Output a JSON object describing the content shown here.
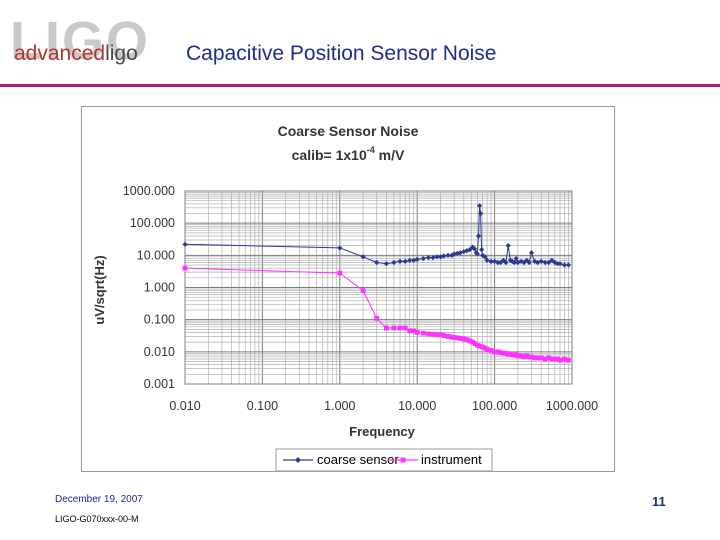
{
  "header": {
    "logo_big": "LIGO",
    "logo_adv": "advanced",
    "logo_ligo": "ligo",
    "title": "Capacitive Position Sensor Noise"
  },
  "footer": {
    "date": "December 19, 2007",
    "doc_id": "LIGO-G070xxx-00-M",
    "page_number": "11"
  },
  "colors": {
    "accent_rule": "#a6207a",
    "title": "#1f2b8f",
    "coarse_sensor": "#2b3a8f",
    "instrument": "#ff33ff"
  },
  "chart_data": {
    "type": "line",
    "title": "Coarse Sensor Noise",
    "subtitle_prefix": "calib= 1x10",
    "subtitle_exp": "-4",
    "subtitle_suffix": " m/V",
    "xlabel": "Frequency",
    "ylabel": "uV/sqrt(Hz)",
    "xscale": "log",
    "yscale": "log",
    "xlim": [
      0.01,
      1000
    ],
    "ylim": [
      0.001,
      1000
    ],
    "xticks": [
      0.01,
      0.1,
      1,
      10,
      100,
      1000
    ],
    "xtick_labels": [
      "0.010",
      "0.100",
      "1.000",
      "10.000",
      "100.000",
      "1000.000"
    ],
    "yticks": [
      0.001,
      0.01,
      0.1,
      1,
      10,
      100,
      1000
    ],
    "ytick_labels": [
      "0.001",
      "0.010",
      "0.100",
      "1.000",
      "10.000",
      "100.000",
      "1000.000"
    ],
    "grid": true,
    "legend_position": "bottom",
    "series": [
      {
        "name": "coarse sensor",
        "marker": "diamond",
        "x": [
          0.01,
          1.0,
          2.0,
          3.0,
          4.0,
          5.0,
          6.0,
          7.0,
          8.0,
          9.0,
          10.0,
          12.0,
          14.0,
          16.0,
          18.0,
          20.0,
          22.0,
          25.0,
          28.0,
          30.0,
          33.0,
          36.0,
          40.0,
          44.0,
          48.0,
          52.0,
          55.0,
          58.0,
          60.0,
          62.0,
          64.0,
          66.0,
          68.0,
          70.0,
          75.0,
          80.0,
          90.0,
          100.0,
          110.0,
          120.0,
          130.0,
          140.0,
          150.0,
          160.0,
          170.0,
          180.0,
          190.0,
          200.0,
          220.0,
          240.0,
          260.0,
          280.0,
          300.0,
          330.0,
          360.0,
          400.0,
          450.0,
          500.0,
          550.0,
          600.0,
          650.0,
          700.0,
          800.0,
          900.0
        ],
        "y": [
          22.0,
          17.0,
          9.0,
          6.0,
          5.5,
          6.0,
          6.5,
          6.5,
          7.0,
          7.0,
          7.5,
          8.0,
          8.5,
          8.5,
          9.0,
          9.0,
          9.5,
          10.0,
          10.0,
          11.0,
          11.5,
          12.0,
          13.0,
          14.0,
          15.0,
          18.0,
          16.0,
          12.0,
          11.0,
          40.0,
          350.0,
          200.0,
          15.0,
          10.0,
          9.0,
          7.0,
          6.5,
          6.5,
          6.0,
          6.0,
          7.0,
          6.0,
          20.0,
          7.0,
          6.5,
          6.0,
          8.0,
          6.0,
          6.5,
          6.0,
          7.0,
          6.0,
          12.0,
          6.5,
          6.0,
          6.5,
          6.0,
          6.0,
          7.0,
          6.0,
          5.5,
          5.5,
          5.0,
          5.0
        ]
      },
      {
        "name": "instrument",
        "marker": "square",
        "x": [
          0.01,
          1.0,
          2.0,
          3.0,
          4.0,
          5.0,
          6.0,
          7.0,
          8.0,
          9.0,
          10.0,
          12.0,
          14.0,
          16.0,
          18.0,
          20.0,
          22.0,
          25.0,
          28.0,
          30.0,
          33.0,
          36.0,
          40.0,
          44.0,
          48.0,
          52.0,
          56.0,
          60.0,
          65.0,
          70.0,
          75.0,
          80.0,
          90.0,
          100.0,
          110.0,
          120.0,
          130.0,
          140.0,
          150.0,
          160.0,
          170.0,
          180.0,
          190.0,
          200.0,
          220.0,
          240.0,
          260.0,
          280.0,
          300.0,
          330.0,
          360.0,
          400.0,
          450.0,
          500.0,
          550.0,
          600.0,
          650.0,
          700.0,
          800.0,
          900.0
        ],
        "y": [
          4.0,
          2.8,
          0.8,
          0.11,
          0.055,
          0.055,
          0.055,
          0.055,
          0.045,
          0.045,
          0.04,
          0.038,
          0.036,
          0.035,
          0.034,
          0.034,
          0.032,
          0.03,
          0.029,
          0.028,
          0.027,
          0.026,
          0.025,
          0.024,
          0.022,
          0.02,
          0.018,
          0.016,
          0.015,
          0.014,
          0.013,
          0.012,
          0.011,
          0.01,
          0.01,
          0.0095,
          0.009,
          0.009,
          0.0085,
          0.0085,
          0.008,
          0.008,
          0.008,
          0.0075,
          0.0075,
          0.007,
          0.0075,
          0.007,
          0.007,
          0.0065,
          0.0065,
          0.0065,
          0.006,
          0.0065,
          0.006,
          0.006,
          0.006,
          0.0055,
          0.006,
          0.0055
        ]
      }
    ]
  }
}
